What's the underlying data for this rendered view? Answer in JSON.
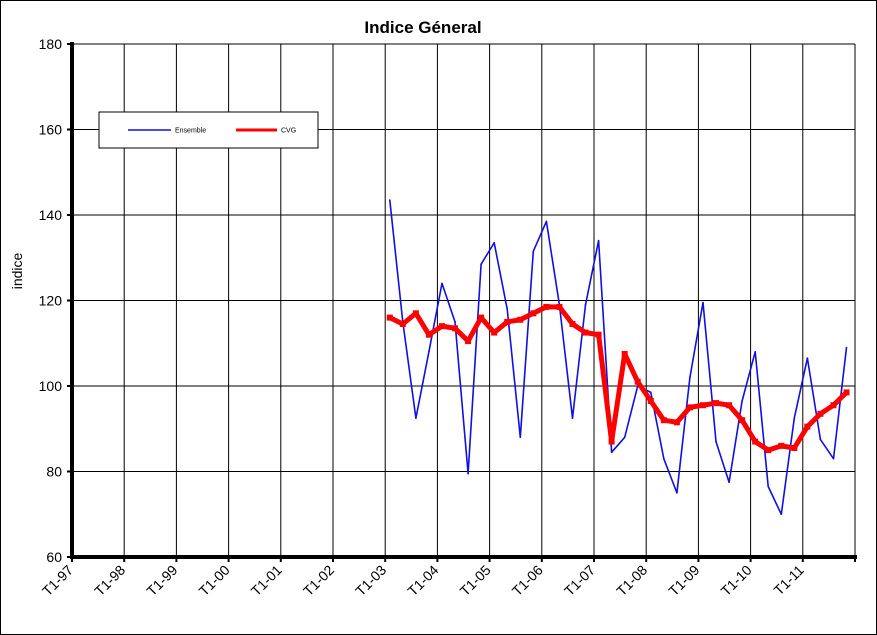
{
  "chart_data": {
    "type": "line",
    "title": "Indice Géneral",
    "xlabel": "",
    "ylabel": "indice",
    "ylim": [
      60,
      180
    ],
    "yticks": [
      60,
      80,
      100,
      120,
      140,
      160,
      180
    ],
    "grid": true,
    "legend_position": "top-left",
    "categories": [
      "T1-97",
      "T1-98",
      "T1-99",
      "T1-00",
      "T1-01",
      "T1-02",
      "T1-03",
      "T1-04",
      "T1-05",
      "T1-06",
      "T1-07",
      "T1-08",
      "T1-09",
      "T1-10",
      "T1-11"
    ],
    "x": [
      "T1-03",
      "T2-03",
      "T3-03",
      "T4-03",
      "T1-04",
      "T2-04",
      "T3-04",
      "T4-04",
      "T1-05",
      "T2-05",
      "T3-05",
      "T4-05",
      "T1-06",
      "T2-06",
      "T3-06",
      "T4-06",
      "T1-07",
      "T2-07",
      "T3-07",
      "T4-07",
      "T1-08",
      "T2-08",
      "T3-08",
      "T4-08",
      "T1-09",
      "T2-09",
      "T3-09",
      "T4-09",
      "T1-10",
      "T2-10",
      "T3-10",
      "T4-10",
      "T1-11",
      "T2-11",
      "T3-11",
      "T4-11"
    ],
    "series": [
      {
        "name": "Ensemble",
        "color": "#1010e0",
        "values": [
          143.5,
          115,
          92.5,
          108,
          124,
          115,
          79.5,
          128.5,
          133.5,
          118,
          88,
          131.5,
          138.5,
          119,
          92.5,
          119,
          134,
          84.5,
          88,
          100,
          98.5,
          83,
          75,
          102,
          119.5,
          87,
          77.5,
          96.5,
          108,
          76.5,
          70,
          92.5,
          106.5,
          87.5,
          83,
          109
        ]
      },
      {
        "name": "CVG",
        "color": "#ff0000",
        "values": [
          116,
          114.5,
          117,
          112,
          114,
          113.5,
          110.5,
          116,
          112.5,
          115,
          115.5,
          117,
          118.5,
          118.5,
          114.5,
          112.5,
          112,
          87,
          107.5,
          101,
          96.5,
          92,
          91.5,
          95,
          95.5,
          96,
          95.5,
          92,
          87,
          85,
          86,
          85.5,
          90.5,
          93.5,
          95.5,
          98.5
        ]
      }
    ]
  }
}
